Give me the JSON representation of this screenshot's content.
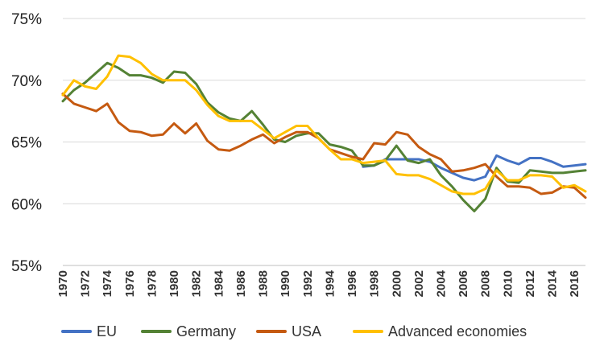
{
  "chart_data": {
    "type": "line",
    "title": "",
    "xlabel": "",
    "ylabel": "",
    "ylim": [
      55,
      75
    ],
    "y_ticks": [
      "55%",
      "60%",
      "65%",
      "70%",
      "75%"
    ],
    "y_tick_values": [
      55,
      60,
      65,
      70,
      75
    ],
    "x": [
      1970,
      1971,
      1972,
      1973,
      1974,
      1975,
      1976,
      1977,
      1978,
      1979,
      1980,
      1981,
      1982,
      1983,
      1984,
      1985,
      1986,
      1987,
      1988,
      1989,
      1990,
      1991,
      1992,
      1993,
      1994,
      1995,
      1996,
      1997,
      1998,
      1999,
      2000,
      2001,
      2002,
      2003,
      2004,
      2005,
      2006,
      2007,
      2008,
      2009,
      2010,
      2011,
      2012,
      2013,
      2014,
      2015,
      2016,
      2017
    ],
    "x_ticks": [
      "1970",
      "1972",
      "1974",
      "1976",
      "1978",
      "1980",
      "1982",
      "1984",
      "1986",
      "1988",
      "1990",
      "1992",
      "1994",
      "1996",
      "1998",
      "2000",
      "2002",
      "2004",
      "2006",
      "2008",
      "2010",
      "2012",
      "2014",
      "2016"
    ],
    "grid": true,
    "legend_position": "bottom",
    "series": [
      {
        "name": "EU",
        "color": "#4472C4",
        "values": [
          null,
          null,
          null,
          null,
          null,
          null,
          null,
          null,
          null,
          null,
          null,
          null,
          null,
          null,
          null,
          null,
          null,
          null,
          null,
          null,
          null,
          null,
          null,
          null,
          null,
          null,
          null,
          63.0,
          63.1,
          63.6,
          63.6,
          63.6,
          63.6,
          63.4,
          62.9,
          62.5,
          62.1,
          61.9,
          62.2,
          63.9,
          63.5,
          63.2,
          63.7,
          63.7,
          63.4,
          63.0,
          63.1,
          63.2
        ]
      },
      {
        "name": "Germany",
        "color": "#548235",
        "values": [
          68.3,
          69.2,
          69.8,
          70.6,
          71.4,
          71.0,
          70.4,
          70.4,
          70.2,
          69.8,
          70.7,
          70.6,
          69.7,
          68.2,
          67.4,
          66.9,
          66.7,
          67.5,
          66.4,
          65.2,
          65.0,
          65.5,
          65.7,
          65.7,
          64.8,
          64.6,
          64.3,
          63.1,
          63.1,
          63.5,
          64.7,
          63.5,
          63.3,
          63.6,
          62.3,
          61.4,
          60.3,
          59.4,
          60.4,
          62.9,
          61.8,
          61.7,
          62.7,
          62.6,
          62.5,
          62.5,
          62.6,
          62.7
        ]
      },
      {
        "name": "USA",
        "color": "#C55A11",
        "values": [
          68.9,
          68.1,
          67.8,
          67.5,
          68.1,
          66.6,
          65.9,
          65.8,
          65.5,
          65.6,
          66.5,
          65.7,
          66.5,
          65.1,
          64.4,
          64.3,
          64.7,
          65.2,
          65.6,
          64.9,
          65.4,
          65.8,
          65.8,
          65.3,
          64.4,
          64.1,
          63.8,
          63.6,
          64.9,
          64.8,
          65.8,
          65.6,
          64.6,
          64.0,
          63.6,
          62.6,
          62.7,
          62.9,
          63.2,
          62.2,
          61.4,
          61.4,
          61.3,
          60.8,
          60.9,
          61.4,
          61.3,
          60.5
        ]
      },
      {
        "name": "Advanced economies",
        "color": "#FFC000",
        "values": [
          68.8,
          70.0,
          69.5,
          69.3,
          70.3,
          72.0,
          71.9,
          71.4,
          70.5,
          70.0,
          70.0,
          70.0,
          69.2,
          68.0,
          67.1,
          66.7,
          66.7,
          66.7,
          66.0,
          65.3,
          65.8,
          66.3,
          66.3,
          65.3,
          64.4,
          63.6,
          63.6,
          63.3,
          63.4,
          63.5,
          62.4,
          62.3,
          62.3,
          62.0,
          61.5,
          61.0,
          60.8,
          60.8,
          61.2,
          62.7,
          61.9,
          61.9,
          62.3,
          62.3,
          62.2,
          61.3,
          61.5,
          61.0
        ]
      }
    ]
  }
}
